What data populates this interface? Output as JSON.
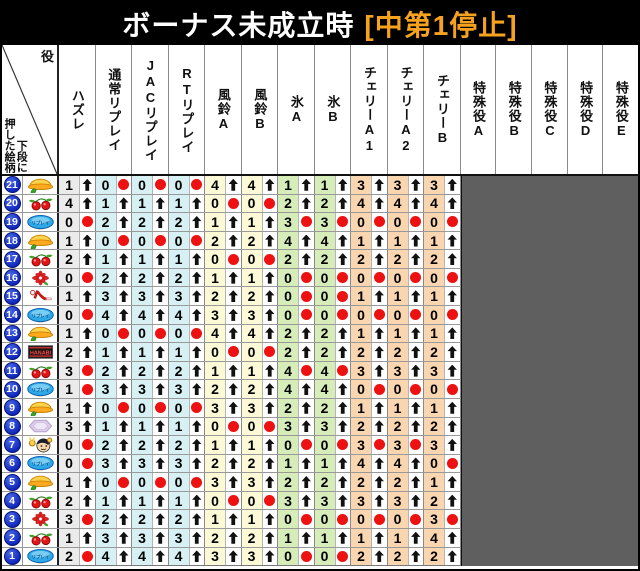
{
  "title": {
    "main": "ボーナス未成立時",
    "highlight": "[中第1停止]"
  },
  "corner": {
    "role": "役",
    "pushed_left": "押した絵柄",
    "pushed_right": "下段に"
  },
  "colors": {
    "accent_orange": "#f7a21e",
    "dot_red": "#ee1111",
    "badge_blue": "#0c23b8",
    "special_block_gray": "#5f5f5f",
    "tints": {
      "hazure": "#ebebeb",
      "replay": "#d6f0f4",
      "furin": "#fcfad6",
      "koori": "#d6edba",
      "cherry": "#f9d6b0"
    }
  },
  "table": {
    "columns": [
      {
        "label": "ハズレ",
        "group": "hazure"
      },
      {
        "label": "通常リプレイ",
        "group": "replay"
      },
      {
        "label": "JACリプレイ",
        "group": "replay"
      },
      {
        "label": "RTリプレイ",
        "group": "replay"
      },
      {
        "label": "風鈴A",
        "group": "furin"
      },
      {
        "label": "風鈴B",
        "group": "furin"
      },
      {
        "label": "氷A",
        "group": "koori"
      },
      {
        "label": "氷B",
        "group": "koori"
      },
      {
        "label": "チェリーA1",
        "group": "cherry"
      },
      {
        "label": "チェリーA2",
        "group": "cherry"
      },
      {
        "label": "チェリーB",
        "group": "cherry"
      }
    ],
    "special_columns": [
      "特殊役A",
      "特殊役B",
      "特殊役C",
      "特殊役D",
      "特殊役E"
    ],
    "rows": [
      {
        "num": "21",
        "symbol": "windchime",
        "cells": [
          [
            "1",
            "up"
          ],
          [
            "0",
            "dot"
          ],
          [
            "0",
            "dot"
          ],
          [
            "0",
            "dot"
          ],
          [
            "4",
            "up"
          ],
          [
            "4",
            "up"
          ],
          [
            "1",
            "up"
          ],
          [
            "1",
            "up"
          ],
          [
            "3",
            "up"
          ],
          [
            "3",
            "up"
          ],
          [
            "3",
            "up"
          ]
        ]
      },
      {
        "num": "20",
        "symbol": "cherry",
        "cells": [
          [
            "4",
            "up"
          ],
          [
            "1",
            "up"
          ],
          [
            "1",
            "up"
          ],
          [
            "1",
            "up"
          ],
          [
            "0",
            "dot"
          ],
          [
            "0",
            "dot"
          ],
          [
            "2",
            "up"
          ],
          [
            "2",
            "up"
          ],
          [
            "4",
            "up"
          ],
          [
            "4",
            "up"
          ],
          [
            "4",
            "up"
          ]
        ]
      },
      {
        "num": "19",
        "symbol": "replay",
        "cells": [
          [
            "0",
            "dot"
          ],
          [
            "2",
            "up"
          ],
          [
            "2",
            "up"
          ],
          [
            "2",
            "up"
          ],
          [
            "1",
            "up"
          ],
          [
            "1",
            "up"
          ],
          [
            "3",
            "dot"
          ],
          [
            "3",
            "dot"
          ],
          [
            "0",
            "dot"
          ],
          [
            "0",
            "dot"
          ],
          [
            "0",
            "dot"
          ]
        ]
      },
      {
        "num": "18",
        "symbol": "windchime",
        "cells": [
          [
            "1",
            "up"
          ],
          [
            "0",
            "dot"
          ],
          [
            "0",
            "dot"
          ],
          [
            "0",
            "dot"
          ],
          [
            "2",
            "up"
          ],
          [
            "2",
            "up"
          ],
          [
            "4",
            "up"
          ],
          [
            "4",
            "up"
          ],
          [
            "1",
            "up"
          ],
          [
            "1",
            "up"
          ],
          [
            "1",
            "up"
          ]
        ]
      },
      {
        "num": "17",
        "symbol": "cherry",
        "cells": [
          [
            "2",
            "up"
          ],
          [
            "1",
            "up"
          ],
          [
            "1",
            "up"
          ],
          [
            "1",
            "up"
          ],
          [
            "0",
            "dot"
          ],
          [
            "0",
            "dot"
          ],
          [
            "2",
            "up"
          ],
          [
            "2",
            "up"
          ],
          [
            "2",
            "up"
          ],
          [
            "2",
            "up"
          ],
          [
            "2",
            "up"
          ]
        ]
      },
      {
        "num": "16",
        "symbol": "flower",
        "cells": [
          [
            "0",
            "dot"
          ],
          [
            "2",
            "up"
          ],
          [
            "2",
            "up"
          ],
          [
            "2",
            "up"
          ],
          [
            "1",
            "up"
          ],
          [
            "1",
            "up"
          ],
          [
            "0",
            "dot"
          ],
          [
            "0",
            "dot"
          ],
          [
            "0",
            "dot"
          ],
          [
            "0",
            "dot"
          ],
          [
            "0",
            "dot"
          ]
        ]
      },
      {
        "num": "15",
        "symbol": "seven",
        "cells": [
          [
            "1",
            "up"
          ],
          [
            "3",
            "up"
          ],
          [
            "3",
            "up"
          ],
          [
            "3",
            "up"
          ],
          [
            "2",
            "up"
          ],
          [
            "2",
            "up"
          ],
          [
            "0",
            "dot"
          ],
          [
            "0",
            "dot"
          ],
          [
            "1",
            "up"
          ],
          [
            "1",
            "up"
          ],
          [
            "1",
            "up"
          ]
        ]
      },
      {
        "num": "14",
        "symbol": "replay",
        "cells": [
          [
            "0",
            "dot"
          ],
          [
            "4",
            "up"
          ],
          [
            "4",
            "up"
          ],
          [
            "4",
            "up"
          ],
          [
            "3",
            "up"
          ],
          [
            "3",
            "up"
          ],
          [
            "0",
            "dot"
          ],
          [
            "0",
            "dot"
          ],
          [
            "0",
            "dot"
          ],
          [
            "0",
            "dot"
          ],
          [
            "0",
            "dot"
          ]
        ]
      },
      {
        "num": "13",
        "symbol": "windchime",
        "cells": [
          [
            "1",
            "up"
          ],
          [
            "0",
            "dot"
          ],
          [
            "0",
            "dot"
          ],
          [
            "0",
            "dot"
          ],
          [
            "4",
            "up"
          ],
          [
            "4",
            "up"
          ],
          [
            "2",
            "up"
          ],
          [
            "2",
            "up"
          ],
          [
            "1",
            "up"
          ],
          [
            "1",
            "up"
          ],
          [
            "1",
            "up"
          ]
        ]
      },
      {
        "num": "12",
        "symbol": "hanabi-logo",
        "cells": [
          [
            "2",
            "up"
          ],
          [
            "1",
            "up"
          ],
          [
            "1",
            "up"
          ],
          [
            "1",
            "up"
          ],
          [
            "0",
            "dot"
          ],
          [
            "0",
            "dot"
          ],
          [
            "2",
            "up"
          ],
          [
            "2",
            "up"
          ],
          [
            "2",
            "up"
          ],
          [
            "2",
            "up"
          ],
          [
            "2",
            "up"
          ]
        ]
      },
      {
        "num": "11",
        "symbol": "cherry",
        "cells": [
          [
            "3",
            "dot"
          ],
          [
            "2",
            "up"
          ],
          [
            "2",
            "up"
          ],
          [
            "2",
            "up"
          ],
          [
            "1",
            "up"
          ],
          [
            "1",
            "up"
          ],
          [
            "4",
            "dot"
          ],
          [
            "4",
            "dot"
          ],
          [
            "3",
            "up"
          ],
          [
            "3",
            "up"
          ],
          [
            "3",
            "up"
          ]
        ]
      },
      {
        "num": "10",
        "symbol": "replay",
        "cells": [
          [
            "1",
            "dot"
          ],
          [
            "3",
            "up"
          ],
          [
            "3",
            "up"
          ],
          [
            "3",
            "up"
          ],
          [
            "2",
            "up"
          ],
          [
            "2",
            "up"
          ],
          [
            "4",
            "up"
          ],
          [
            "4",
            "up"
          ],
          [
            "0",
            "dot"
          ],
          [
            "0",
            "dot"
          ],
          [
            "0",
            "dot"
          ]
        ]
      },
      {
        "num": "9",
        "symbol": "windchime",
        "cells": [
          [
            "1",
            "up"
          ],
          [
            "0",
            "dot"
          ],
          [
            "0",
            "dot"
          ],
          [
            "0",
            "dot"
          ],
          [
            "3",
            "up"
          ],
          [
            "3",
            "up"
          ],
          [
            "2",
            "up"
          ],
          [
            "2",
            "up"
          ],
          [
            "1",
            "up"
          ],
          [
            "1",
            "up"
          ],
          [
            "1",
            "up"
          ]
        ]
      },
      {
        "num": "8",
        "symbol": "ice",
        "cells": [
          [
            "3",
            "up"
          ],
          [
            "1",
            "up"
          ],
          [
            "1",
            "up"
          ],
          [
            "1",
            "up"
          ],
          [
            "0",
            "dot"
          ],
          [
            "0",
            "dot"
          ],
          [
            "3",
            "up"
          ],
          [
            "3",
            "up"
          ],
          [
            "2",
            "up"
          ],
          [
            "2",
            "up"
          ],
          [
            "2",
            "up"
          ]
        ]
      },
      {
        "num": "7",
        "symbol": "donchan",
        "cells": [
          [
            "0",
            "dot"
          ],
          [
            "2",
            "up"
          ],
          [
            "2",
            "up"
          ],
          [
            "2",
            "up"
          ],
          [
            "1",
            "up"
          ],
          [
            "1",
            "up"
          ],
          [
            "0",
            "dot"
          ],
          [
            "0",
            "dot"
          ],
          [
            "3",
            "dot"
          ],
          [
            "3",
            "dot"
          ],
          [
            "3",
            "up"
          ]
        ]
      },
      {
        "num": "6",
        "symbol": "replay",
        "cells": [
          [
            "0",
            "dot"
          ],
          [
            "3",
            "up"
          ],
          [
            "3",
            "up"
          ],
          [
            "3",
            "up"
          ],
          [
            "2",
            "up"
          ],
          [
            "2",
            "up"
          ],
          [
            "1",
            "up"
          ],
          [
            "1",
            "up"
          ],
          [
            "4",
            "up"
          ],
          [
            "4",
            "up"
          ],
          [
            "0",
            "dot"
          ]
        ]
      },
      {
        "num": "5",
        "symbol": "windchime",
        "cells": [
          [
            "1",
            "up"
          ],
          [
            "0",
            "dot"
          ],
          [
            "0",
            "dot"
          ],
          [
            "0",
            "dot"
          ],
          [
            "3",
            "up"
          ],
          [
            "3",
            "up"
          ],
          [
            "2",
            "up"
          ],
          [
            "2",
            "up"
          ],
          [
            "2",
            "up"
          ],
          [
            "2",
            "up"
          ],
          [
            "1",
            "up"
          ]
        ]
      },
      {
        "num": "4",
        "symbol": "cherry",
        "cells": [
          [
            "2",
            "up"
          ],
          [
            "1",
            "up"
          ],
          [
            "1",
            "up"
          ],
          [
            "1",
            "up"
          ],
          [
            "0",
            "dot"
          ],
          [
            "0",
            "dot"
          ],
          [
            "3",
            "up"
          ],
          [
            "3",
            "up"
          ],
          [
            "3",
            "up"
          ],
          [
            "3",
            "up"
          ],
          [
            "2",
            "up"
          ]
        ]
      },
      {
        "num": "3",
        "symbol": "flower",
        "cells": [
          [
            "3",
            "dot"
          ],
          [
            "2",
            "up"
          ],
          [
            "2",
            "up"
          ],
          [
            "2",
            "up"
          ],
          [
            "1",
            "up"
          ],
          [
            "1",
            "up"
          ],
          [
            "0",
            "dot"
          ],
          [
            "0",
            "dot"
          ],
          [
            "0",
            "dot"
          ],
          [
            "0",
            "dot"
          ],
          [
            "3",
            "dot"
          ]
        ]
      },
      {
        "num": "2",
        "symbol": "cherry",
        "cells": [
          [
            "1",
            "up"
          ],
          [
            "3",
            "up"
          ],
          [
            "3",
            "up"
          ],
          [
            "3",
            "up"
          ],
          [
            "2",
            "up"
          ],
          [
            "2",
            "up"
          ],
          [
            "1",
            "up"
          ],
          [
            "1",
            "up"
          ],
          [
            "1",
            "up"
          ],
          [
            "1",
            "up"
          ],
          [
            "4",
            "up"
          ]
        ]
      },
      {
        "num": "1",
        "symbol": "replay",
        "cells": [
          [
            "2",
            "dot"
          ],
          [
            "4",
            "up"
          ],
          [
            "4",
            "up"
          ],
          [
            "4",
            "up"
          ],
          [
            "3",
            "up"
          ],
          [
            "3",
            "up"
          ],
          [
            "0",
            "dot"
          ],
          [
            "0",
            "dot"
          ],
          [
            "2",
            "up"
          ],
          [
            "2",
            "up"
          ],
          [
            "2",
            "up"
          ]
        ]
      }
    ]
  }
}
